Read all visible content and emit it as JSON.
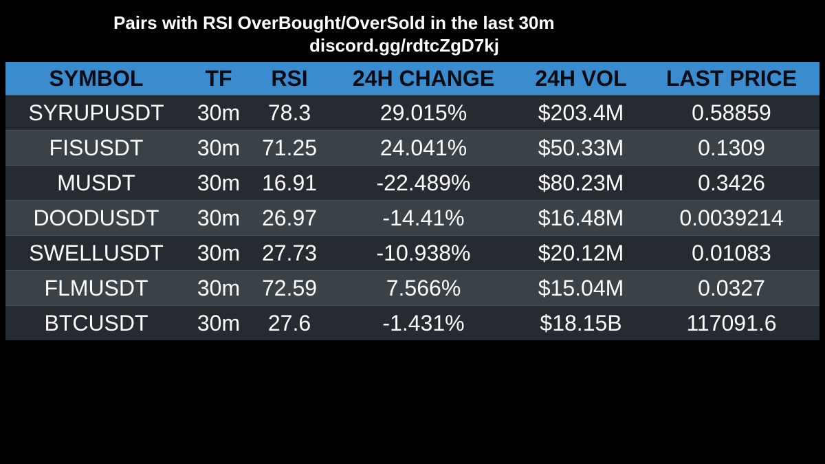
{
  "header": {
    "title": "Pairs with RSI OverBought/OverSold in the last 30m",
    "subtitle": "discord.gg/rdtcZgD7kj"
  },
  "colors": {
    "background": "#000000",
    "header_row": "#3a8ccf",
    "row_dark": "#252b30",
    "row_light": "#3b4247",
    "header_text": "#0b0b14",
    "cell_text": "#ffffff"
  },
  "table": {
    "columns": [
      "SYMBOL",
      "TF",
      "RSI",
      "24H CHANGE",
      "24H VOL",
      "LAST PRICE"
    ],
    "rows": [
      [
        "SYRUPUSDT",
        "30m",
        "78.3",
        "29.015%",
        "$203.4M",
        "0.58859"
      ],
      [
        "FISUSDT",
        "30m",
        "71.25",
        "24.041%",
        "$50.33M",
        "0.1309"
      ],
      [
        "MUSDT",
        "30m",
        "16.91",
        "-22.489%",
        "$80.23M",
        "0.3426"
      ],
      [
        "DOODUSDT",
        "30m",
        "26.97",
        "-14.41%",
        "$16.48M",
        "0.0039214"
      ],
      [
        "SWELLUSDT",
        "30m",
        "27.73",
        "-10.938%",
        "$20.12M",
        "0.01083"
      ],
      [
        "FLMUSDT",
        "30m",
        "72.59",
        "7.566%",
        "$15.04M",
        "0.0327"
      ],
      [
        "BTCUSDT",
        "30m",
        "27.6",
        "-1.431%",
        "$18.15B",
        "117091.6"
      ]
    ]
  }
}
